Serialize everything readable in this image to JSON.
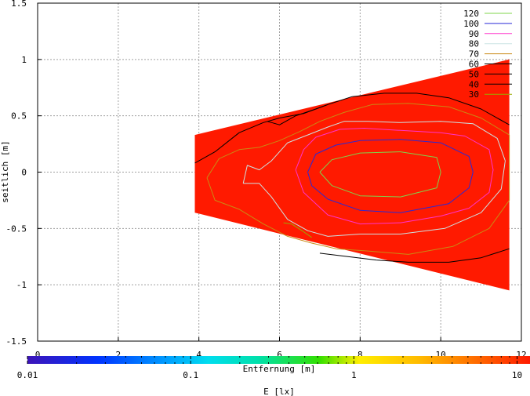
{
  "chart_data": {
    "type": "contour",
    "xlabel": "Entfernung [m]",
    "ylabel": "seitlich [m]",
    "xlim": [
      0,
      12
    ],
    "ylim": [
      -1.5,
      1.5
    ],
    "xticks": [
      "0",
      "2",
      "4",
      "6",
      "8",
      "10",
      "12"
    ],
    "yticks": [
      "1.5",
      "1",
      "0.5",
      "0",
      "-0.5",
      "-1",
      "-1.5"
    ],
    "grid": true,
    "legend_position": "top-right",
    "fill_color": "#ff1a00",
    "field_region": [
      [
        3.9,
        0.33
      ],
      [
        11.7,
        1.0
      ],
      [
        11.7,
        -1.05
      ],
      [
        3.9,
        -0.36
      ]
    ],
    "series": [
      {
        "name": "120",
        "color": "#7fd44b",
        "points": [
          [
            7.0,
            0
          ],
          [
            7.3,
            0.11
          ],
          [
            8.0,
            0.17
          ],
          [
            9.0,
            0.18
          ],
          [
            9.9,
            0.13
          ],
          [
            10.0,
            0
          ],
          [
            9.9,
            -0.14
          ],
          [
            9.0,
            -0.22
          ],
          [
            8.0,
            -0.21
          ],
          [
            7.3,
            -0.12
          ],
          [
            7.0,
            0
          ]
        ]
      },
      {
        "name": "100",
        "color": "#2929d6",
        "points": [
          [
            6.7,
            0
          ],
          [
            6.9,
            0.16
          ],
          [
            7.4,
            0.24
          ],
          [
            8.0,
            0.28
          ],
          [
            9.0,
            0.29
          ],
          [
            10.0,
            0.26
          ],
          [
            10.7,
            0.14
          ],
          [
            10.8,
            0
          ],
          [
            10.7,
            -0.14
          ],
          [
            10.2,
            -0.28
          ],
          [
            9.0,
            -0.36
          ],
          [
            8.0,
            -0.34
          ],
          [
            7.2,
            -0.24
          ],
          [
            6.8,
            -0.12
          ],
          [
            6.7,
            0
          ]
        ]
      },
      {
        "name": "90",
        "color": "#ff33cc",
        "points": [
          [
            6.4,
            0.02
          ],
          [
            6.6,
            0.2
          ],
          [
            6.9,
            0.31
          ],
          [
            7.5,
            0.38
          ],
          [
            8.1,
            0.39
          ],
          [
            9.0,
            0.37
          ],
          [
            10.0,
            0.35
          ],
          [
            10.6,
            0.32
          ],
          [
            11.2,
            0.2
          ],
          [
            11.3,
            0.02
          ],
          [
            11.2,
            -0.18
          ],
          [
            10.7,
            -0.32
          ],
          [
            10.0,
            -0.39
          ],
          [
            9.0,
            -0.45
          ],
          [
            8.0,
            -0.46
          ],
          [
            7.2,
            -0.38
          ],
          [
            6.6,
            -0.18
          ],
          [
            6.4,
            0.02
          ]
        ]
      },
      {
        "name": "80",
        "color": "#cce3e3",
        "points": [
          [
            5.1,
            -0.1
          ],
          [
            5.2,
            0.06
          ],
          [
            5.5,
            0.02
          ],
          [
            5.8,
            0.1
          ],
          [
            6.2,
            0.26
          ],
          [
            6.7,
            0.33
          ],
          [
            7.2,
            0.4
          ],
          [
            7.6,
            0.45
          ],
          [
            8.2,
            0.45
          ],
          [
            9.0,
            0.44
          ],
          [
            10.0,
            0.45
          ],
          [
            10.8,
            0.43
          ],
          [
            11.4,
            0.3
          ],
          [
            11.6,
            0.1
          ],
          [
            11.5,
            -0.15
          ],
          [
            11.0,
            -0.36
          ],
          [
            10.1,
            -0.5
          ],
          [
            9.0,
            -0.55
          ],
          [
            8.0,
            -0.55
          ],
          [
            7.2,
            -0.57
          ],
          [
            6.7,
            -0.52
          ],
          [
            6.2,
            -0.42
          ],
          [
            5.8,
            -0.22
          ],
          [
            5.5,
            -0.1
          ],
          [
            5.1,
            -0.1
          ]
        ]
      },
      {
        "name": "70",
        "color": "#c98a14",
        "points": [
          [
            4.2,
            -0.05
          ],
          [
            4.5,
            0.12
          ],
          [
            5.0,
            0.2
          ],
          [
            5.5,
            0.22
          ],
          [
            6.0,
            0.28
          ],
          [
            6.5,
            0.36
          ],
          [
            7.0,
            0.45
          ],
          [
            7.6,
            0.53
          ],
          [
            8.3,
            0.6
          ],
          [
            9.2,
            0.61
          ],
          [
            10.2,
            0.58
          ],
          [
            11.0,
            0.48
          ],
          [
            11.7,
            0.33
          ],
          [
            11.7,
            -0.25
          ],
          [
            11.2,
            -0.5
          ],
          [
            10.3,
            -0.66
          ],
          [
            9.2,
            -0.73
          ],
          [
            8.2,
            -0.7
          ],
          [
            7.4,
            -0.68
          ],
          [
            6.8,
            -0.63
          ],
          [
            6.2,
            -0.57
          ],
          [
            5.6,
            -0.46
          ],
          [
            5.0,
            -0.33
          ],
          [
            4.4,
            -0.25
          ],
          [
            4.2,
            -0.05
          ]
        ]
      },
      {
        "name": "60",
        "color": "#000000",
        "points": [
          [
            3.9,
            0.08
          ],
          [
            4.4,
            0.18
          ],
          [
            5.0,
            0.35
          ],
          [
            5.6,
            0.44
          ],
          [
            6.0,
            0.48
          ],
          [
            6.6,
            0.52
          ],
          [
            7.2,
            0.6
          ],
          [
            7.8,
            0.67
          ],
          [
            8.6,
            0.7
          ],
          [
            9.4,
            0.7
          ],
          [
            10.2,
            0.66
          ],
          [
            11.0,
            0.56
          ],
          [
            11.7,
            0.42
          ]
        ]
      },
      {
        "name": "50",
        "color": "#000000",
        "points": [
          [
            11.7,
            -0.68
          ],
          [
            11.0,
            -0.76
          ],
          [
            10.2,
            -0.8
          ],
          [
            9.2,
            -0.8
          ],
          [
            8.4,
            -0.78
          ],
          [
            7.7,
            -0.75
          ],
          [
            7.0,
            -0.72
          ]
        ]
      },
      {
        "name": "40",
        "color": "#000000",
        "points": [
          [
            5.7,
            0.45
          ],
          [
            6.0,
            0.42
          ],
          [
            6.4,
            0.5
          ],
          [
            6.9,
            0.56
          ],
          [
            7.2,
            0.6
          ]
        ]
      },
      {
        "name": "30",
        "color": "#99aa00",
        "points": [
          [
            6.1,
            -0.45
          ],
          [
            6.3,
            -0.46
          ],
          [
            6.6,
            -0.53
          ],
          [
            6.8,
            -0.58
          ]
        ]
      }
    ],
    "colorbar": {
      "label": "E [lx]",
      "scale": "log",
      "range": [
        0.01,
        12
      ],
      "tick_labels": [
        "0.01",
        "0.1",
        "1",
        "10"
      ],
      "tick_values": [
        0.01,
        0.1,
        1,
        10
      ]
    }
  }
}
